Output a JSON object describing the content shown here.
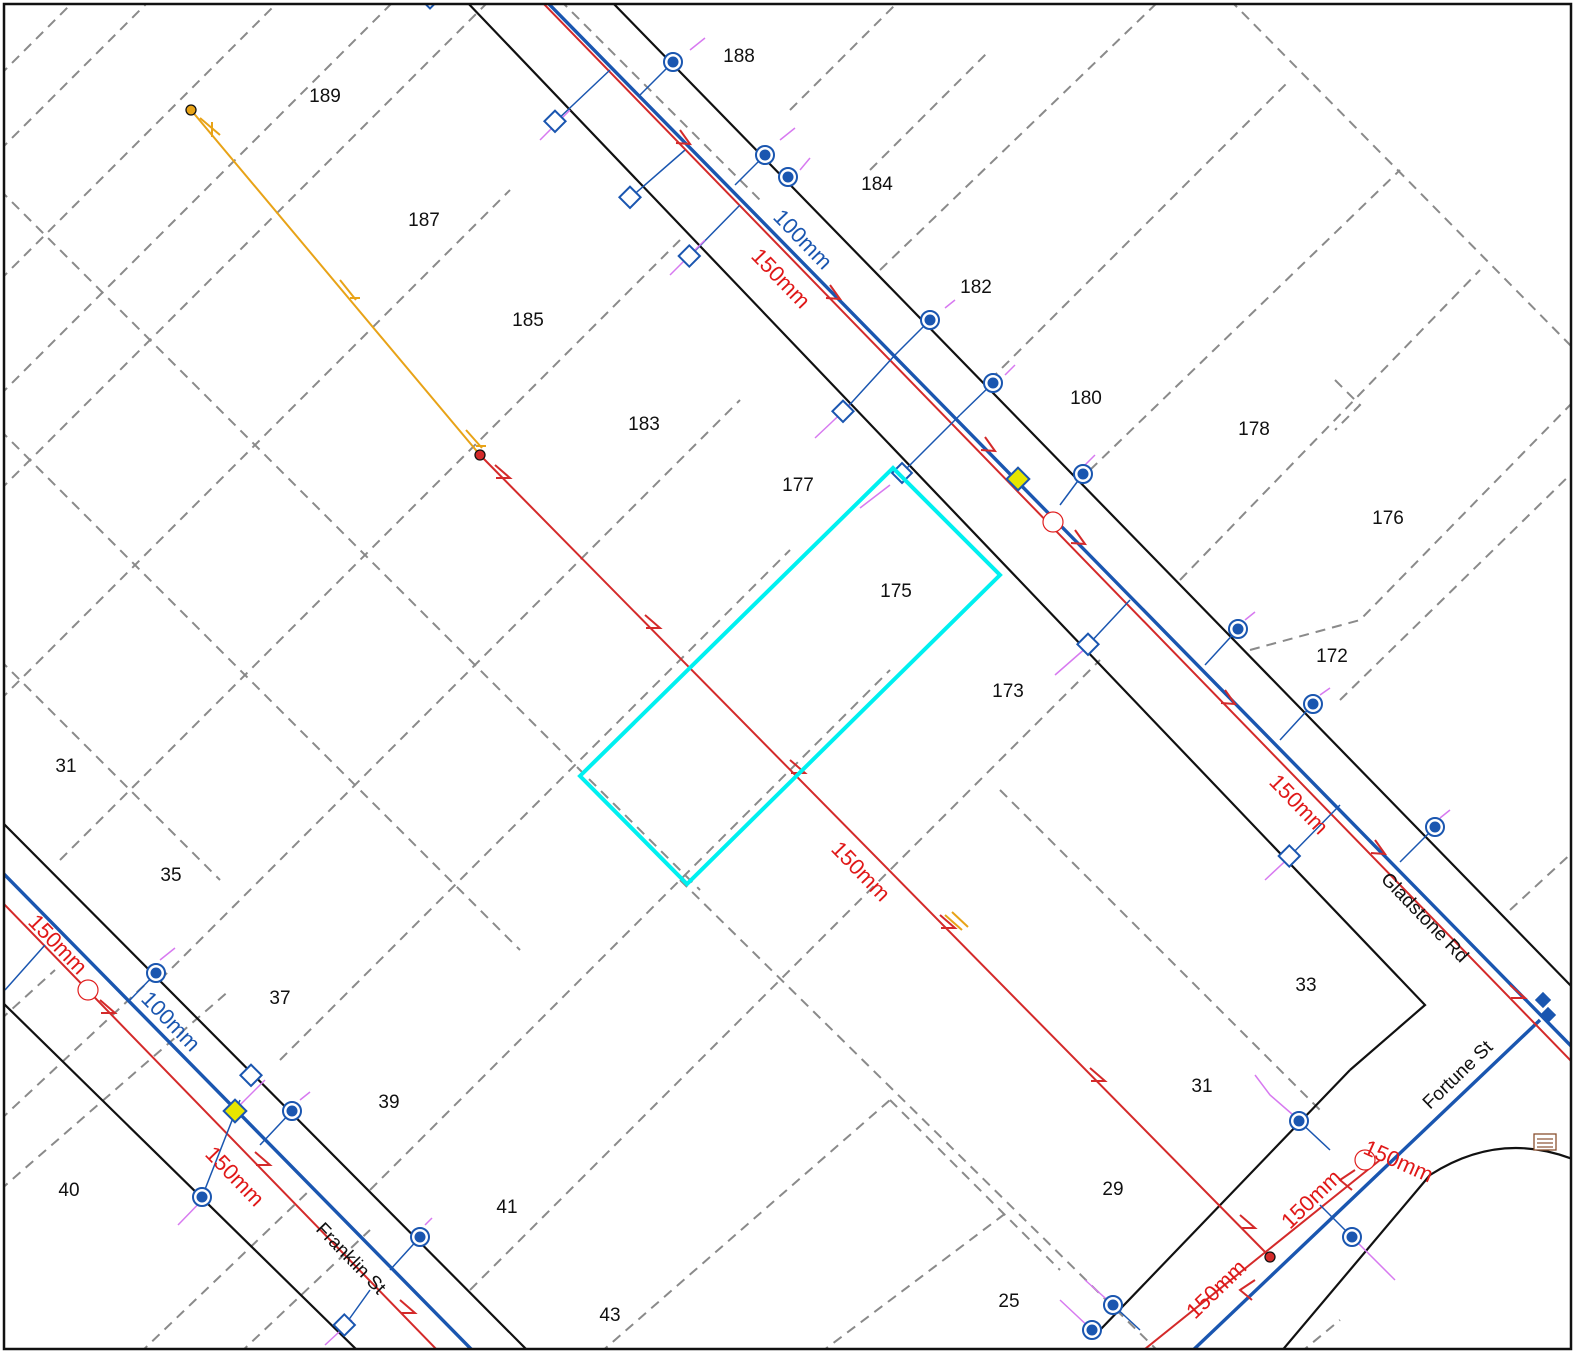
{
  "colors": {
    "highlight": "#00f0f0",
    "water_main": "#1a56b0",
    "sewer_main": "#d42a2a",
    "storm_line": "#e8a317",
    "valve_fill": "#e6e600",
    "boundary": "#8a8a8a",
    "service_tick": "#d77af0"
  },
  "icons": {
    "hydrant": "blue-circle-dot-icon",
    "meter": "blue-diamond-icon",
    "valve": "yellow-diamond-icon",
    "manhole": "red-dot-icon",
    "legend": "stacked-lines-icon"
  },
  "lots": [
    {
      "id": "lot-188",
      "label": "188"
    },
    {
      "id": "lot-189",
      "label": "189"
    },
    {
      "id": "lot-184",
      "label": "184"
    },
    {
      "id": "lot-187",
      "label": "187"
    },
    {
      "id": "lot-182",
      "label": "182"
    },
    {
      "id": "lot-185",
      "label": "185"
    },
    {
      "id": "lot-180",
      "label": "180"
    },
    {
      "id": "lot-183",
      "label": "183"
    },
    {
      "id": "lot-178",
      "label": "178"
    },
    {
      "id": "lot-177",
      "label": "177"
    },
    {
      "id": "lot-176",
      "label": "176"
    },
    {
      "id": "lot-175",
      "label": "175"
    },
    {
      "id": "lot-172",
      "label": "172"
    },
    {
      "id": "lot-173",
      "label": "173"
    },
    {
      "id": "lot-31a",
      "label": "31"
    },
    {
      "id": "lot-35",
      "label": "35"
    },
    {
      "id": "lot-33",
      "label": "33"
    },
    {
      "id": "lot-37",
      "label": "37"
    },
    {
      "id": "lot-31b",
      "label": "31"
    },
    {
      "id": "lot-39",
      "label": "39"
    },
    {
      "id": "lot-29",
      "label": "29"
    },
    {
      "id": "lot-40",
      "label": "40"
    },
    {
      "id": "lot-41",
      "label": "41"
    },
    {
      "id": "lot-25",
      "label": "25"
    },
    {
      "id": "lot-43",
      "label": "43"
    }
  ],
  "streets": [
    {
      "id": "gladstone",
      "label": "Gladstone Rd"
    },
    {
      "id": "fortune",
      "label": "Fortune St"
    },
    {
      "id": "franklin",
      "label": "Franklin St"
    }
  ],
  "pipe_labels": [
    {
      "id": "gl-water",
      "label": "100mm",
      "kind": "water"
    },
    {
      "id": "gl-sewer-top",
      "label": "150mm",
      "kind": "sewer"
    },
    {
      "id": "gl-sewer-bottom",
      "label": "150mm",
      "kind": "sewer"
    },
    {
      "id": "diag-sewer",
      "label": "150mm",
      "kind": "sewer"
    },
    {
      "id": "fr-sewer-left",
      "label": "150mm",
      "kind": "sewer"
    },
    {
      "id": "fr-water",
      "label": "100mm",
      "kind": "water"
    },
    {
      "id": "fr-sewer-lower",
      "label": "150mm",
      "kind": "sewer"
    },
    {
      "id": "fo-sewer-a",
      "label": "150mm",
      "kind": "sewer"
    },
    {
      "id": "fo-sewer-b",
      "label": "150mm",
      "kind": "sewer"
    },
    {
      "id": "fo-sewer-c",
      "label": "150mm",
      "kind": "sewer"
    }
  ]
}
